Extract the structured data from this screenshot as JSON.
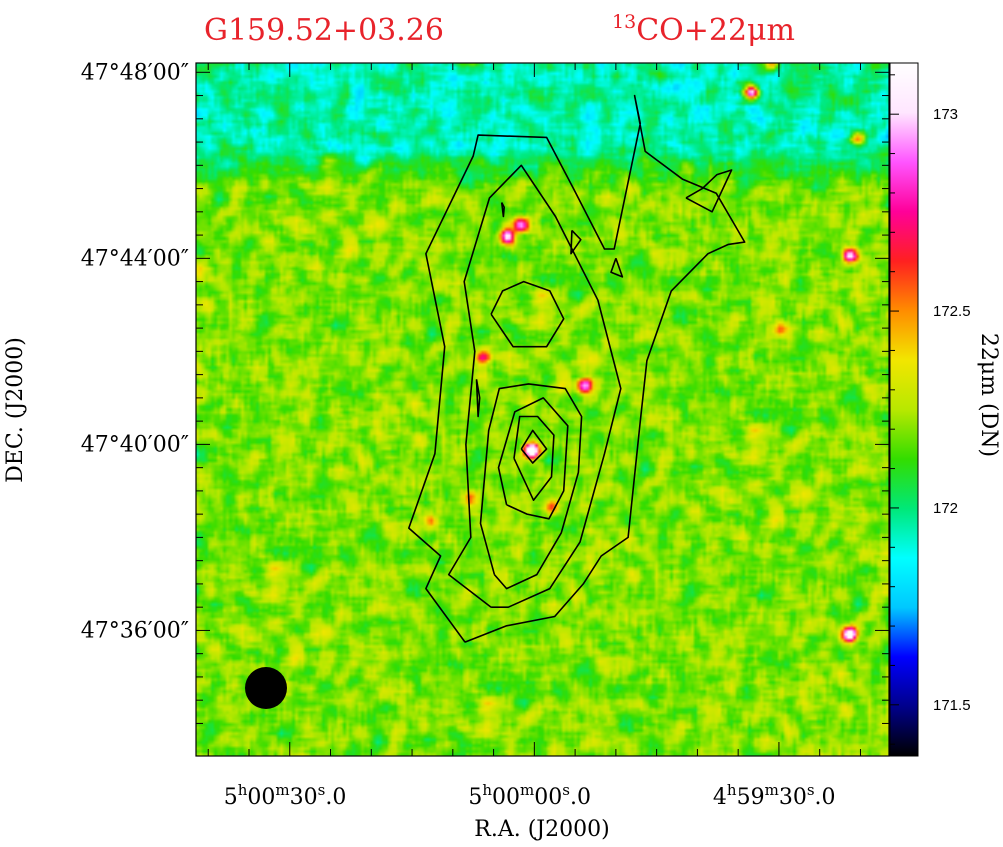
{
  "chart_data": {
    "type": "heatmap",
    "title_left": "G159.52+03.26",
    "title_right_sup": "13",
    "title_right_main": "CO+22μm",
    "xlabel": "R.A. (J2000)",
    "ylabel": "DEC. (J2000)",
    "colorbar_label": "22μm (DN)",
    "x_ticks": [
      {
        "h": "5",
        "m": "00",
        "s": "30",
        "dec": ".0",
        "value_s": 30
      },
      {
        "h": "5",
        "m": "00",
        "s": "00",
        "dec": ".0",
        "value_s": 0
      },
      {
        "h": "4",
        "m": "59",
        "s": "30",
        "dec": ".0",
        "value_s": -30
      }
    ],
    "y_ticks": [
      {
        "label": "47°48′00″",
        "value_arcmin": 48
      },
      {
        "label": "47°44′00″",
        "value_arcmin": 44
      },
      {
        "label": "47°40′00″",
        "value_arcmin": 40
      },
      {
        "label": "47°36′00″",
        "value_arcmin": 36
      }
    ],
    "x_range_s": [
      41.5,
      -43.5
    ],
    "y_range_arcmin": [
      33.3,
      48.2
    ],
    "colorbar_ticks": [
      "171.5",
      "172",
      "172.5",
      "173"
    ],
    "colorbar_range": [
      171.37,
      173.13
    ],
    "colormap": [
      "#000000",
      "#00008b",
      "#0000ff",
      "#00c8ff",
      "#00ffff",
      "#00e878",
      "#33dd00",
      "#b8e800",
      "#f2e600",
      "#ff8c00",
      "#ff2020",
      "#ff0099",
      "#ff55ff",
      "#ffe6ff",
      "#ffffff"
    ],
    "background_dn": 172.2,
    "beam": {
      "position": "bottom-left",
      "color": "#000000"
    },
    "point_sources": [
      {
        "ra_s": 0.5,
        "dec_arcmin": 39.9,
        "peak_dn": 173.6
      },
      {
        "ra_s": -26.5,
        "dec_arcmin": 47.6,
        "peak_dn": 173.3
      },
      {
        "ra_s": -38.5,
        "dec_arcmin": 35.95,
        "peak_dn": 173.4
      },
      {
        "ra_s": -38.5,
        "dec_arcmin": 44.1,
        "peak_dn": 173.1
      },
      {
        "ra_s": -39.5,
        "dec_arcmin": 46.6,
        "peak_dn": 172.8
      },
      {
        "ra_s": 3.5,
        "dec_arcmin": 44.5,
        "peak_dn": 173.1
      },
      {
        "ra_s": 1.8,
        "dec_arcmin": 44.75,
        "peak_dn": 173.0
      },
      {
        "ra_s": -6.0,
        "dec_arcmin": 41.3,
        "peak_dn": 173.0
      },
      {
        "ra_s": 6.5,
        "dec_arcmin": 41.9,
        "peak_dn": 172.8
      },
      {
        "ra_s": -30.0,
        "dec_arcmin": 42.5,
        "peak_dn": 172.55
      },
      {
        "ra_s": -29.0,
        "dec_arcmin": 48.2,
        "peak_dn": 172.8
      },
      {
        "ra_s": 13.0,
        "dec_arcmin": 38.4,
        "peak_dn": 172.5
      },
      {
        "ra_s": -2.0,
        "dec_arcmin": 38.7,
        "peak_dn": 172.6
      },
      {
        "ra_s": 8.0,
        "dec_arcmin": 38.9,
        "peak_dn": 172.5
      }
    ],
    "cool_region": {
      "dec_arcmin_from": 45.5,
      "dec_arcmin_to": 48.2,
      "dn": 171.95
    },
    "contours": [
      [
        [
          8.5,
          35.75
        ],
        [
          13.3,
          36.9
        ],
        [
          11.5,
          37.6
        ],
        [
          15.4,
          38.2
        ],
        [
          12.2,
          39.8
        ],
        [
          11,
          42.1
        ],
        [
          13.3,
          44.1
        ],
        [
          7.5,
          46.2
        ],
        [
          6.9,
          46.65
        ],
        [
          -1.5,
          46.6
        ],
        [
          -4.8,
          45.5
        ],
        [
          -8.6,
          44.2
        ],
        [
          -9.8,
          44.2
        ],
        [
          -13,
          46.9
        ],
        [
          -12.3,
          47.5
        ],
        [
          -13.6,
          46.3
        ],
        [
          -18.2,
          45.7
        ],
        [
          -22.3,
          45.4
        ],
        [
          -24.3,
          44.8
        ],
        [
          -25.8,
          44.35
        ],
        [
          -23.8,
          44.3
        ],
        [
          -21.3,
          44.1
        ],
        [
          -16.8,
          43.3
        ],
        [
          -13.8,
          41.8
        ],
        [
          -13,
          40.5
        ],
        [
          -11.5,
          38.0
        ],
        [
          -8.2,
          37.6
        ],
        [
          -6.0,
          37.0
        ],
        [
          -2.5,
          36.3
        ],
        [
          3.4,
          36.1
        ],
        [
          8.5,
          35.75
        ]
      ],
      [
        [
          5.3,
          36.5
        ],
        [
          10.5,
          37.2
        ],
        [
          7.8,
          38.0
        ],
        [
          8.4,
          40.0
        ],
        [
          7.3,
          42.0
        ],
        [
          8.6,
          43.5
        ],
        [
          5.5,
          45.3
        ],
        [
          1.6,
          46.0
        ],
        [
          -2.6,
          44.9
        ],
        [
          -7.8,
          43.1
        ],
        [
          -10.6,
          41.2
        ],
        [
          -8.6,
          39.8
        ],
        [
          -5.6,
          37.9
        ],
        [
          -1.9,
          36.9
        ],
        [
          3.2,
          36.5
        ],
        [
          5.3,
          36.5
        ]
      ],
      [
        [
          4.9,
          37.2
        ],
        [
          6.6,
          38.3
        ],
        [
          5.6,
          40.3
        ],
        [
          4.3,
          41.2
        ],
        [
          0.7,
          41.3
        ],
        [
          -3.8,
          41.2
        ],
        [
          -5.8,
          40.6
        ],
        [
          -5.4,
          39.4
        ],
        [
          -3.3,
          38.1
        ],
        [
          -0.3,
          37.2
        ],
        [
          3.4,
          36.9
        ],
        [
          4.9,
          37.2
        ]
      ],
      [
        [
          3.4,
          38.7
        ],
        [
          4.4,
          39.5
        ],
        [
          2.4,
          40.7
        ],
        [
          -1.1,
          41.0
        ],
        [
          -4.1,
          40.4
        ],
        [
          -3.6,
          39.0
        ],
        [
          -1.8,
          38.4
        ],
        [
          0.9,
          38.5
        ],
        [
          3.4,
          38.7
        ]
      ],
      [
        [
          2.5,
          39.7
        ],
        [
          1.8,
          40.6
        ],
        [
          -0.4,
          40.6
        ],
        [
          -2.4,
          40.2
        ],
        [
          -2.1,
          39.3
        ],
        [
          0.1,
          38.8
        ],
        [
          2.5,
          39.7
        ]
      ],
      [
        [
          1.6,
          39.9
        ],
        [
          0.2,
          40.3
        ],
        [
          -1.5,
          39.9
        ],
        [
          0.2,
          39.6
        ],
        [
          1.6,
          39.9
        ]
      ],
      [
        [
          5.3,
          42.8
        ],
        [
          3.9,
          43.3
        ],
        [
          1.3,
          43.5
        ],
        [
          -1.9,
          43.3
        ],
        [
          -3.6,
          42.7
        ],
        [
          -1.5,
          42.1
        ],
        [
          2.6,
          42.1
        ],
        [
          5.3,
          42.8
        ]
      ],
      [
        [
          -4.6,
          44.6
        ],
        [
          -5.7,
          44.4
        ],
        [
          -4.5,
          44.1
        ],
        [
          -4.6,
          44.6
        ]
      ],
      [
        [
          -10.0,
          44.0
        ],
        [
          -10.8,
          43.6
        ],
        [
          -9.4,
          43.7
        ],
        [
          -10.0,
          44.0
        ]
      ],
      [
        [
          -18.6,
          45.3
        ],
        [
          -21.8,
          45.0
        ],
        [
          -24.2,
          45.9
        ],
        [
          -22.4,
          45.8
        ],
        [
          -20.6,
          45.5
        ],
        [
          -18.6,
          45.3
        ]
      ],
      [
        [
          4.0,
          45.2
        ],
        [
          3.7,
          45.1
        ],
        [
          3.8,
          44.9
        ],
        [
          4.0,
          45.2
        ]
      ],
      [
        [
          7.1,
          41.4
        ],
        [
          6.7,
          41.0
        ],
        [
          6.9,
          40.6
        ],
        [
          7.1,
          41.4
        ]
      ]
    ]
  }
}
